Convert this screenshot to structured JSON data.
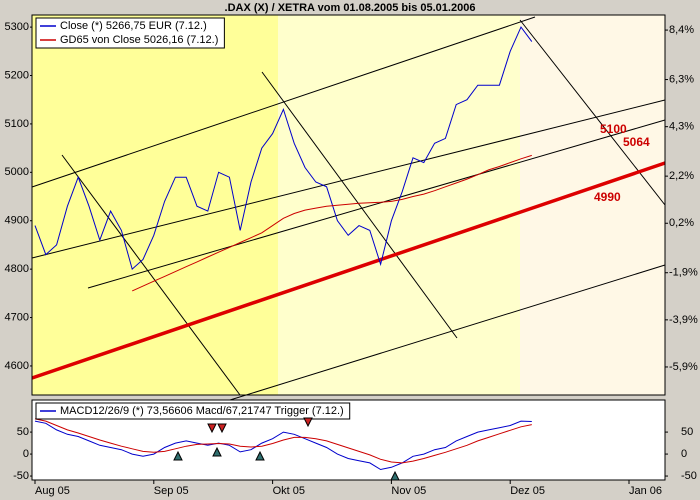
{
  "chart_data": [
    {
      "type": "line",
      "title": ".DAX (X) / XETRA vom 01.08.2005 bis 05.01.2006",
      "legend": "upper left",
      "series": [
        {
          "name": "Close (*) 5266,75 EUR (7.12.)",
          "color": "#0000cc",
          "width": 1,
          "values": [
            4890,
            4830,
            4850,
            4930,
            4990,
            4930,
            4860,
            4920,
            4880,
            4800,
            4820,
            4870,
            4940,
            4990,
            4990,
            4930,
            4920,
            5000,
            4990,
            4880,
            4980,
            5050,
            5080,
            5130,
            5060,
            5010,
            4980,
            4970,
            4900,
            4870,
            4890,
            4880,
            4810,
            4900,
            4960,
            5030,
            5020,
            5060,
            5070,
            5140,
            5150,
            5180,
            5180,
            5180,
            5250,
            5300,
            5270,
            null,
            null,
            null,
            null,
            null,
            null,
            null,
            null,
            null,
            null
          ]
        },
        {
          "name": "GD65 von Close 5026,16 (7.12.)",
          "color": "#cc0000",
          "width": 1,
          "values": [
            null,
            null,
            null,
            null,
            null,
            null,
            null,
            null,
            null,
            4755,
            4765,
            4775,
            4785,
            4795,
            4805,
            4815,
            4825,
            4835,
            4845,
            4855,
            4865,
            4875,
            4890,
            4905,
            4915,
            4922,
            4926,
            4930,
            4932,
            4934,
            4936,
            4937,
            4938,
            4940,
            4944,
            4950,
            4955,
            4962,
            4970,
            4978,
            4986,
            4995,
            5005,
            5012,
            5020,
            5028,
            5035,
            null,
            null,
            null,
            null,
            null,
            null,
            null,
            null,
            null,
            null
          ]
        }
      ],
      "ylim": [
        4540,
        5325
      ],
      "yticks": [
        4600,
        4700,
        4800,
        4900,
        5000,
        5100,
        5200,
        5300
      ],
      "y2lim": [
        -7.09,
        9.04
      ],
      "y2ticks": [
        {
          "value": 8.4,
          "label": "8,4%"
        },
        {
          "value": 6.3,
          "label": "6,3%"
        },
        {
          "value": 4.3,
          "label": "4,3%"
        },
        {
          "value": 2.2,
          "label": "2,2%"
        },
        {
          "value": 0.2,
          "label": "0,2%"
        },
        {
          "value": -1.9,
          "label": "-1,9%"
        },
        {
          "value": -3.9,
          "label": "-3,9%"
        },
        {
          "value": -5.9,
          "label": "-5,9%"
        }
      ],
      "annotations": [
        "5100",
        "5064",
        "4990"
      ]
    },
    {
      "type": "line",
      "legend": "upper left",
      "categories": [
        "Aug 05",
        null,
        null,
        null,
        null,
        null,
        null,
        null,
        null,
        null,
        null,
        "Sep 05",
        null,
        null,
        null,
        null,
        null,
        null,
        null,
        null,
        null,
        null,
        "Okt 05",
        null,
        null,
        null,
        null,
        null,
        null,
        null,
        null,
        null,
        null,
        "Nov 05",
        null,
        null,
        null,
        null,
        null,
        null,
        null,
        null,
        null,
        null,
        "Dez 05",
        null,
        null,
        null,
        null,
        null,
        null,
        null,
        null,
        null,
        null,
        "Jan 06",
        null
      ],
      "series": [
        {
          "name": "MACD12/26/9 (*) 73,56606 Macd/67,21747 Trigger (7.12.)",
          "color": "#0000cc",
          "values": [
            75,
            70,
            55,
            45,
            40,
            30,
            20,
            15,
            10,
            0,
            -5,
            0,
            15,
            25,
            30,
            25,
            20,
            25,
            20,
            5,
            10,
            25,
            35,
            50,
            45,
            35,
            25,
            15,
            0,
            -10,
            -15,
            -20,
            -35,
            -30,
            -20,
            -5,
            0,
            10,
            15,
            30,
            40,
            50,
            55,
            60,
            65,
            75,
            74,
            null,
            null,
            null,
            null,
            null,
            null,
            null,
            null,
            null,
            null
          ]
        },
        {
          "color": "#cc0000",
          "values": [
            80,
            75,
            65,
            55,
            48,
            40,
            32,
            25,
            18,
            12,
            6,
            4,
            6,
            12,
            18,
            22,
            23,
            24,
            23,
            18,
            16,
            18,
            24,
            32,
            38,
            38,
            35,
            30,
            22,
            14,
            6,
            -2,
            -12,
            -18,
            -20,
            -16,
            -10,
            -3,
            4,
            12,
            20,
            30,
            38,
            46,
            54,
            62,
            67,
            null,
            null,
            null,
            null,
            null,
            null,
            null,
            null,
            null,
            null
          ]
        }
      ],
      "ylim": [
        -59,
        123
      ],
      "yticks": [
        -50,
        0,
        50
      ]
    }
  ]
}
